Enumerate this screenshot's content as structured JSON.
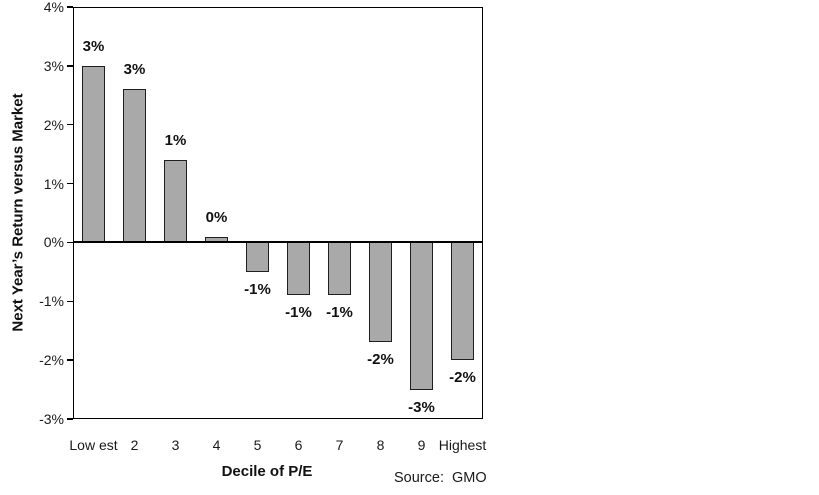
{
  "chart_data": {
    "type": "bar",
    "title": "",
    "xlabel": "Decile of P/E",
    "ylabel": "Next Year’s Return versus Market",
    "source": "Source:  GMO",
    "categories": [
      "Low est",
      "2",
      "3",
      "4",
      "5",
      "6",
      "7",
      "8",
      "9",
      "Highest"
    ],
    "values": [
      3.0,
      2.6,
      1.4,
      0.1,
      -0.5,
      -0.9,
      -0.9,
      -1.7,
      -2.5,
      -2.0
    ],
    "bar_labels": [
      "3%",
      "3%",
      "1%",
      "0%",
      "-1%",
      "-1%",
      "-1%",
      "-2%",
      "-3%",
      "-2%"
    ],
    "ylim": [
      -3,
      4
    ],
    "yticks": [
      4,
      3,
      2,
      1,
      0,
      -1,
      -2,
      -3
    ],
    "ytick_labels": [
      "4%",
      "3%",
      "2%",
      "1%",
      "0%",
      "-1%",
      "-2%",
      "-3%"
    ],
    "grid": false,
    "legend": false,
    "bar_color": "#a9a9a9",
    "bar_border_color": "#1f1f1f",
    "axis_color": "#000000"
  }
}
